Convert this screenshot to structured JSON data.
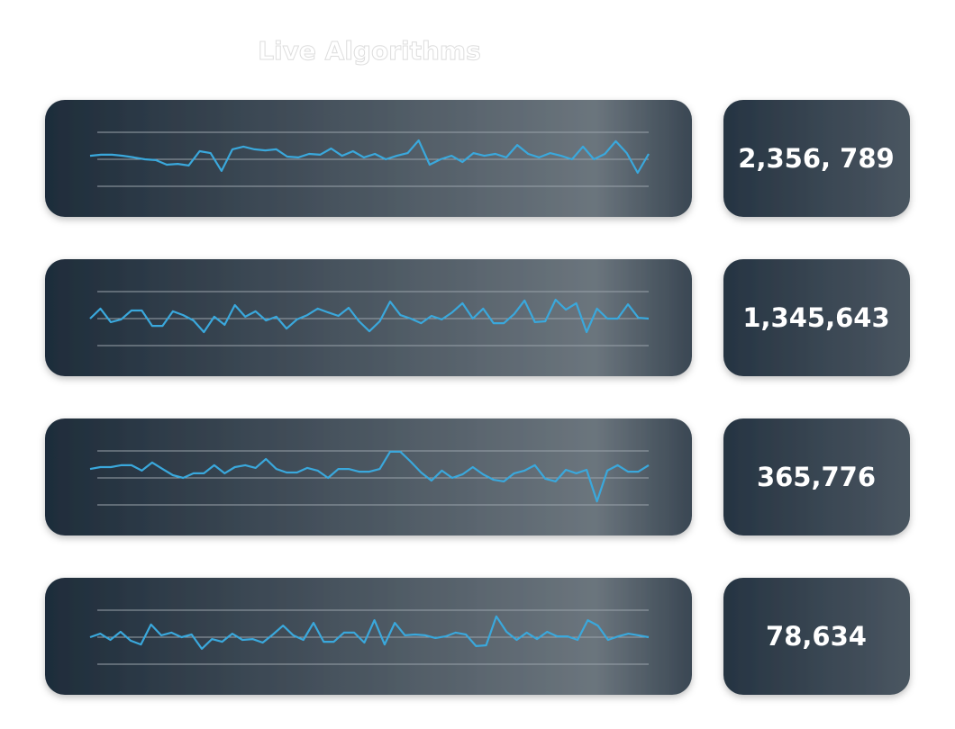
{
  "title": "Live Algorithms",
  "ylim": [
    -1,
    1
  ],
  "yticks": [
    -1,
    0,
    1
  ],
  "line_color": "#3aa8dc",
  "panels": [
    {
      "value": "2,356, 789",
      "sparkline": [
        0.13,
        0.17,
        0.17,
        0.13,
        0.07,
        0.0,
        -0.03,
        -0.2,
        -0.17,
        -0.23,
        0.3,
        0.23,
        -0.43,
        0.37,
        0.47,
        0.37,
        0.33,
        0.37,
        0.1,
        0.07,
        0.2,
        0.17,
        0.4,
        0.13,
        0.3,
        0.07,
        0.2,
        0.0,
        0.13,
        0.23,
        0.7,
        -0.2,
        0.0,
        0.13,
        -0.1,
        0.23,
        0.13,
        0.2,
        0.07,
        0.53,
        0.2,
        0.07,
        0.23,
        0.13,
        0.0,
        0.47,
        0.0,
        0.2,
        0.67,
        0.23,
        -0.5,
        0.2
      ]
    },
    {
      "value": "1,345,643",
      "sparkline": [
        0.0,
        0.37,
        -0.13,
        -0.03,
        0.3,
        0.3,
        -0.27,
        -0.27,
        0.27,
        0.13,
        -0.07,
        -0.5,
        0.07,
        -0.23,
        0.5,
        0.07,
        0.27,
        -0.07,
        0.07,
        -0.37,
        -0.03,
        0.13,
        0.37,
        0.23,
        0.1,
        0.4,
        -0.1,
        -0.47,
        -0.1,
        0.63,
        0.13,
        0.0,
        -0.17,
        0.1,
        -0.03,
        0.23,
        0.57,
        0.0,
        0.37,
        -0.17,
        -0.17,
        0.17,
        0.67,
        -0.13,
        -0.1,
        0.7,
        0.33,
        0.57,
        -0.5,
        0.37,
        0.0,
        0.0,
        0.53,
        0.03,
        0.0
      ]
    },
    {
      "value": "365,776",
      "sparkline": [
        0.33,
        0.4,
        0.4,
        0.47,
        0.47,
        0.27,
        0.57,
        0.33,
        0.1,
        0.0,
        0.17,
        0.17,
        0.47,
        0.17,
        0.4,
        0.47,
        0.37,
        0.7,
        0.33,
        0.2,
        0.2,
        0.37,
        0.27,
        0.0,
        0.33,
        0.33,
        0.23,
        0.23,
        0.33,
        0.97,
        0.97,
        0.6,
        0.2,
        -0.1,
        0.27,
        0.0,
        0.13,
        0.4,
        0.13,
        -0.07,
        -0.13,
        0.17,
        0.27,
        0.47,
        -0.03,
        -0.13,
        0.3,
        0.17,
        0.3,
        -0.87,
        0.27,
        0.47,
        0.23,
        0.23,
        0.47
      ]
    },
    {
      "value": "78,634",
      "sparkline": [
        0.0,
        0.13,
        -0.1,
        0.2,
        -0.13,
        -0.27,
        0.47,
        0.07,
        0.17,
        0.0,
        0.1,
        -0.43,
        -0.07,
        -0.17,
        0.13,
        -0.1,
        -0.07,
        -0.2,
        0.1,
        0.43,
        0.07,
        -0.1,
        0.53,
        -0.17,
        -0.17,
        0.17,
        0.17,
        -0.2,
        0.63,
        -0.27,
        0.53,
        0.07,
        0.1,
        0.07,
        -0.03,
        0.03,
        0.17,
        0.1,
        -0.33,
        -0.3,
        0.77,
        0.2,
        -0.1,
        0.17,
        -0.07,
        0.2,
        0.03,
        0.03,
        -0.1,
        0.63,
        0.43,
        -0.1,
        0.03,
        0.13,
        0.07,
        0.0
      ]
    }
  ]
}
